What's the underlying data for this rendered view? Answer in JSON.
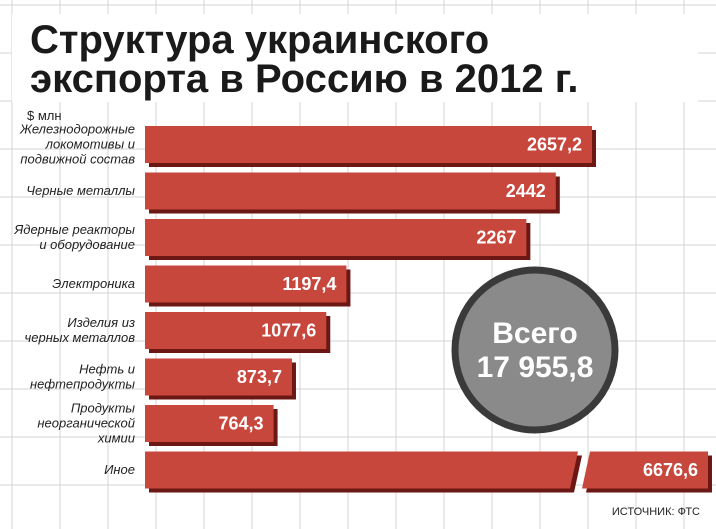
{
  "chart_data": {
    "type": "bar",
    "orientation": "horizontal",
    "title_lines": [
      "Структура украинского",
      "экспорта в Россию в 2012 г."
    ],
    "unit": "$ млн",
    "categories": [
      [
        "Железнодорожные",
        "локомотивы и",
        "подвижной состав"
      ],
      [
        "Черные металлы"
      ],
      [
        "Ядерные реакторы",
        "и оборудование"
      ],
      [
        "Электроника"
      ],
      [
        "Изделия из",
        "черных металлов"
      ],
      [
        "Нефть и",
        "нефтепродукты"
      ],
      [
        "Продукты",
        "неорганической",
        "химии"
      ],
      [
        "Иное"
      ]
    ],
    "values": [
      2657.2,
      2442,
      2267,
      1197.4,
      1077.6,
      873.7,
      764.3,
      6676.6
    ],
    "value_labels": [
      "2657,2",
      "2442",
      "2267",
      "1197,4",
      "1077,6",
      "873,7",
      "764,3",
      "6676,6"
    ],
    "broken_bar_index": 7,
    "bar_color": "#c8473d",
    "bar_shadow_color": "#6b1713",
    "total": {
      "label": "Всего",
      "value": 17955.8,
      "value_label": "17 955,8",
      "color": "#8a8a8a"
    },
    "grid": true
  },
  "source": "ИСТОЧНИК: ФТС"
}
